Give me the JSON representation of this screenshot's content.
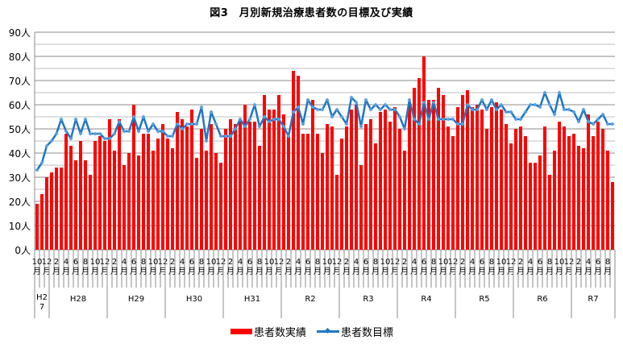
{
  "chart_data": {
    "type": "bar+line",
    "title": "図3　月別新規治療患者数の目標及び実績",
    "ylim": [
      0,
      90
    ],
    "y_ticks": [
      "0人",
      "10人",
      "20人",
      "30人",
      "40人",
      "50人",
      "60人",
      "70人",
      "80人",
      "90人"
    ],
    "grid": true,
    "legend_position": "bottom",
    "categories": [
      "10月",
      "11月",
      "12月",
      "1月",
      "2月",
      "3月",
      "4月",
      "5月",
      "6月",
      "7月",
      "8月",
      "9月",
      "10月",
      "11月",
      "12月",
      "1月",
      "2月",
      "3月",
      "4月",
      "5月",
      "6月",
      "7月",
      "8月",
      "9月",
      "10月",
      "11月",
      "12月",
      "1月",
      "2月",
      "3月",
      "4月",
      "5月",
      "6月",
      "7月",
      "8月",
      "9月",
      "10月",
      "11月",
      "12月",
      "1月",
      "2月",
      "3月",
      "4月",
      "5月",
      "6月",
      "7月",
      "8月",
      "9月",
      "10月",
      "11月",
      "12月",
      "1月",
      "2月",
      "3月",
      "4月",
      "5月",
      "6月",
      "7月",
      "8月",
      "9月",
      "10月",
      "11月",
      "12月",
      "1月",
      "2月",
      "3月",
      "4月",
      "5月",
      "6月",
      "7月",
      "8月",
      "9月",
      "10月",
      "11月",
      "12月",
      "1月",
      "2月",
      "3月",
      "4月",
      "5月",
      "6月",
      "7月",
      "8月",
      "9月",
      "10月",
      "11月",
      "12月",
      "1月",
      "2月",
      "3月",
      "4月",
      "5月",
      "6月",
      "7月",
      "8月",
      "9月",
      "10月",
      "11月",
      "12月",
      "1月",
      "2月",
      "3月",
      "4月",
      "5月",
      "6月",
      "7月",
      "8月",
      "9月",
      "10月",
      "11月",
      "12月",
      "1月",
      "2月",
      "3月",
      "4月",
      "5月",
      "6月",
      "7月",
      "8月",
      "9月"
    ],
    "year_groups": [
      {
        "label": "H27",
        "months": 3
      },
      {
        "label": "H28",
        "months": 12
      },
      {
        "label": "H29",
        "months": 12
      },
      {
        "label": "H30",
        "months": 12
      },
      {
        "label": "H31",
        "months": 12
      },
      {
        "label": "R2",
        "months": 12
      },
      {
        "label": "R3",
        "months": 12
      },
      {
        "label": "R4",
        "months": 12
      },
      {
        "label": "R5",
        "months": 12
      },
      {
        "label": "R6",
        "months": 12
      },
      {
        "label": "R7",
        "months": 9
      }
    ],
    "series": [
      {
        "name": "患者数実績",
        "type": "bar",
        "color": "#ff0000",
        "values": [
          19,
          23,
          30,
          32,
          34,
          34,
          48,
          43,
          37,
          45,
          37,
          31,
          45,
          47,
          45,
          54,
          41,
          54,
          35,
          40,
          60,
          39,
          48,
          48,
          41,
          46,
          52,
          46,
          42,
          57,
          54,
          51,
          58,
          38,
          50,
          41,
          52,
          40,
          36,
          50,
          54,
          52,
          53,
          60,
          53,
          53,
          43,
          64,
          58,
          58,
          64,
          56,
          47,
          74,
          72,
          48,
          48,
          62,
          48,
          40,
          52,
          51,
          31,
          46,
          51,
          58,
          60,
          35,
          52,
          54,
          44,
          57,
          58,
          53,
          59,
          50,
          41,
          61,
          67,
          71,
          80,
          62,
          62,
          67,
          64,
          51,
          47,
          59,
          64,
          66,
          59,
          60,
          58,
          50,
          59,
          61,
          58,
          52,
          44,
          50,
          51,
          47,
          36,
          36,
          39,
          51,
          31,
          41,
          53,
          51,
          47,
          48,
          43,
          42,
          56,
          47,
          53,
          50,
          41,
          28
        ]
      },
      {
        "name": "患者数目標",
        "type": "line",
        "color": "#1f77c4",
        "values": [
          33,
          36,
          43,
          45,
          48,
          54,
          49,
          46,
          54,
          48,
          54,
          48,
          48,
          48,
          46,
          46,
          48,
          53,
          49,
          49,
          55,
          49,
          55,
          49,
          52,
          49,
          49,
          47,
          47,
          52,
          50,
          52,
          52,
          52,
          59,
          45,
          57,
          52,
          47,
          47,
          47,
          50,
          54,
          51,
          54,
          60,
          51,
          55,
          53,
          54,
          54,
          51,
          47,
          57,
          59,
          52,
          62,
          59,
          58,
          58,
          62,
          55,
          58,
          55,
          52,
          63,
          61,
          51,
          62,
          58,
          60,
          58,
          60,
          58,
          58,
          55,
          50,
          62,
          54,
          52,
          61,
          54,
          61,
          54,
          54,
          54,
          54,
          52,
          52,
          60,
          58,
          58,
          62,
          58,
          62,
          58,
          60,
          57,
          57,
          54,
          54,
          57,
          60,
          60,
          59,
          65,
          60,
          56,
          65,
          58,
          58,
          57,
          53,
          58,
          53,
          52,
          54,
          56,
          52,
          52
        ]
      }
    ]
  }
}
